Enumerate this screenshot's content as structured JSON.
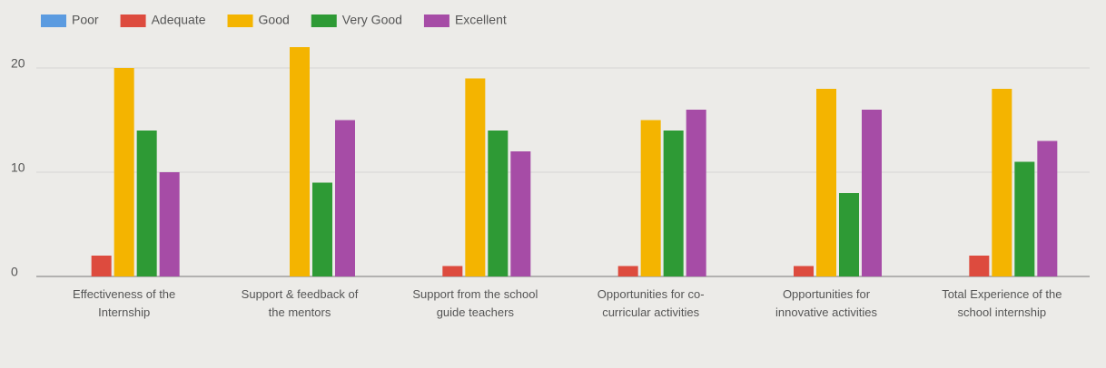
{
  "chart_data": {
    "type": "bar",
    "categories": [
      "Effectiveness of the Internship",
      "Support & feedback of the mentors",
      "Support from the school guide teachers",
      "Opportunities for co-curricular activities",
      "Opportunities for innovative activities",
      "Total Experience of the school internship"
    ],
    "series": [
      {
        "name": "Poor",
        "color": "#5b9be0",
        "values": [
          0,
          0,
          0,
          0,
          0,
          0
        ]
      },
      {
        "name": "Adequate",
        "color": "#dd4b3e",
        "values": [
          2,
          0,
          1,
          1,
          1,
          2
        ]
      },
      {
        "name": "Good",
        "color": "#f4b400",
        "values": [
          20,
          22,
          19,
          15,
          18,
          18
        ]
      },
      {
        "name": "Very Good",
        "color": "#2e9a35",
        "values": [
          14,
          9,
          14,
          14,
          8,
          11
        ]
      },
      {
        "name": "Excellent",
        "color": "#a64ca6",
        "values": [
          10,
          15,
          12,
          16,
          16,
          13
        ]
      }
    ],
    "ylim": [
      0,
      24
    ],
    "yticks": [
      0,
      10,
      20
    ],
    "grid": true,
    "legend": "top"
  }
}
